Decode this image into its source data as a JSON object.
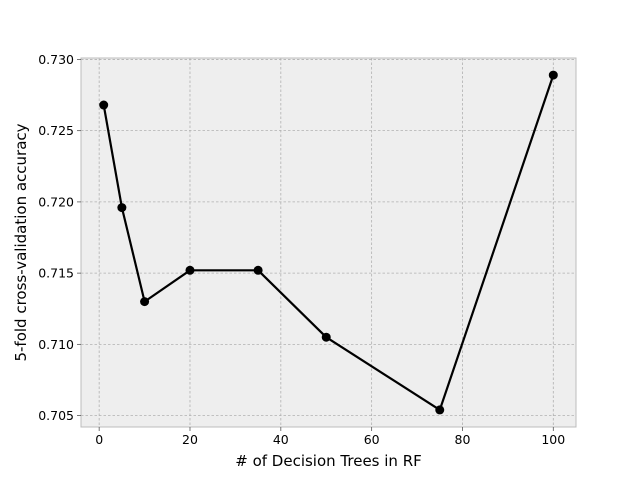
{
  "chart_data": {
    "type": "line",
    "title": "",
    "xlabel": "# of Decision Trees in RF",
    "ylabel": "5-fold cross-validation accuracy",
    "xlim": [
      -4,
      105
    ],
    "ylim": [
      0.7042,
      0.7301
    ],
    "x_ticks": [
      0,
      20,
      40,
      60,
      80,
      100
    ],
    "x_tick_labels": [
      "0",
      "20",
      "40",
      "60",
      "80",
      "100"
    ],
    "y_ticks": [
      0.705,
      0.71,
      0.715,
      0.72,
      0.725,
      0.73
    ],
    "y_tick_labels": [
      "0.705",
      "0.710",
      "0.715",
      "0.720",
      "0.725",
      "0.730"
    ],
    "grid": true,
    "legend": "none",
    "series": [
      {
        "x": [
          1,
          5,
          10,
          20,
          35,
          50,
          75,
          100
        ],
        "y": [
          0.7268,
          0.7196,
          0.713,
          0.7152,
          0.7152,
          0.7105,
          0.7054,
          0.7289
        ],
        "color": "#000000"
      }
    ],
    "colors": {
      "plot_background": "#eeeeee",
      "grid": "#b0b0b0",
      "frame": "#bcbcbc",
      "line": "#000000"
    }
  }
}
